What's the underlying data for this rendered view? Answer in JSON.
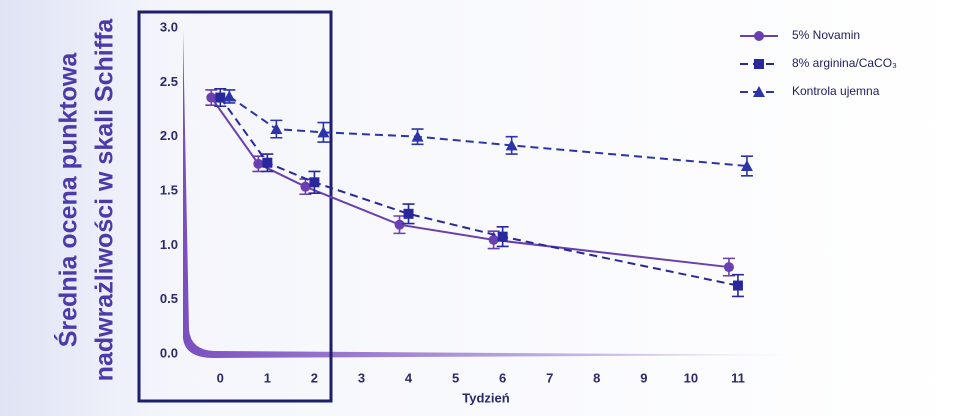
{
  "chart_data": {
    "type": "line",
    "y_label_lines": [
      "Średnia ocena punktowa",
      "nadwrażliwości w skali Schiffa"
    ],
    "x_label": "Tydzień",
    "x": [
      0,
      1,
      2,
      4,
      6,
      11
    ],
    "xlim": [
      -0.75,
      12
    ],
    "xticks": [
      0,
      1,
      2,
      3,
      4,
      5,
      6,
      7,
      8,
      9,
      10,
      11
    ],
    "ylim": [
      0,
      3
    ],
    "yticks": [
      {
        "value": 0,
        "label": "0.0"
      },
      0.5,
      {
        "value": 1,
        "label": "1.0"
      },
      1.5,
      {
        "value": 2,
        "label": "2.0"
      },
      2.5,
      {
        "value": 3,
        "label": "3.0"
      }
    ],
    "legend": "top-right",
    "series": [
      {
        "name": "5% Novamin",
        "color": "#6a3fb0",
        "dash": false,
        "marker": "circle",
        "values": [
          2.36,
          1.75,
          1.54,
          1.19,
          1.05,
          0.8
        ],
        "errors": [
          0.07,
          0.07,
          0.07,
          0.08,
          0.08,
          0.08
        ]
      },
      {
        "name": "8% arginina/CaCO₃",
        "color": "#28289a",
        "dash": true,
        "marker": "square",
        "values": [
          2.36,
          1.76,
          1.58,
          1.29,
          1.08,
          0.63
        ],
        "errors": [
          0.08,
          0.08,
          0.1,
          0.09,
          0.09,
          0.1
        ]
      },
      {
        "name": "Kontrola ujemna",
        "color": "#2c34a8",
        "dash": true,
        "marker": "triangle",
        "values": [
          2.37,
          2.07,
          2.04,
          2.0,
          1.92,
          1.73
        ],
        "errors": [
          0.06,
          0.08,
          0.09,
          0.07,
          0.08,
          0.09
        ]
      }
    ]
  }
}
